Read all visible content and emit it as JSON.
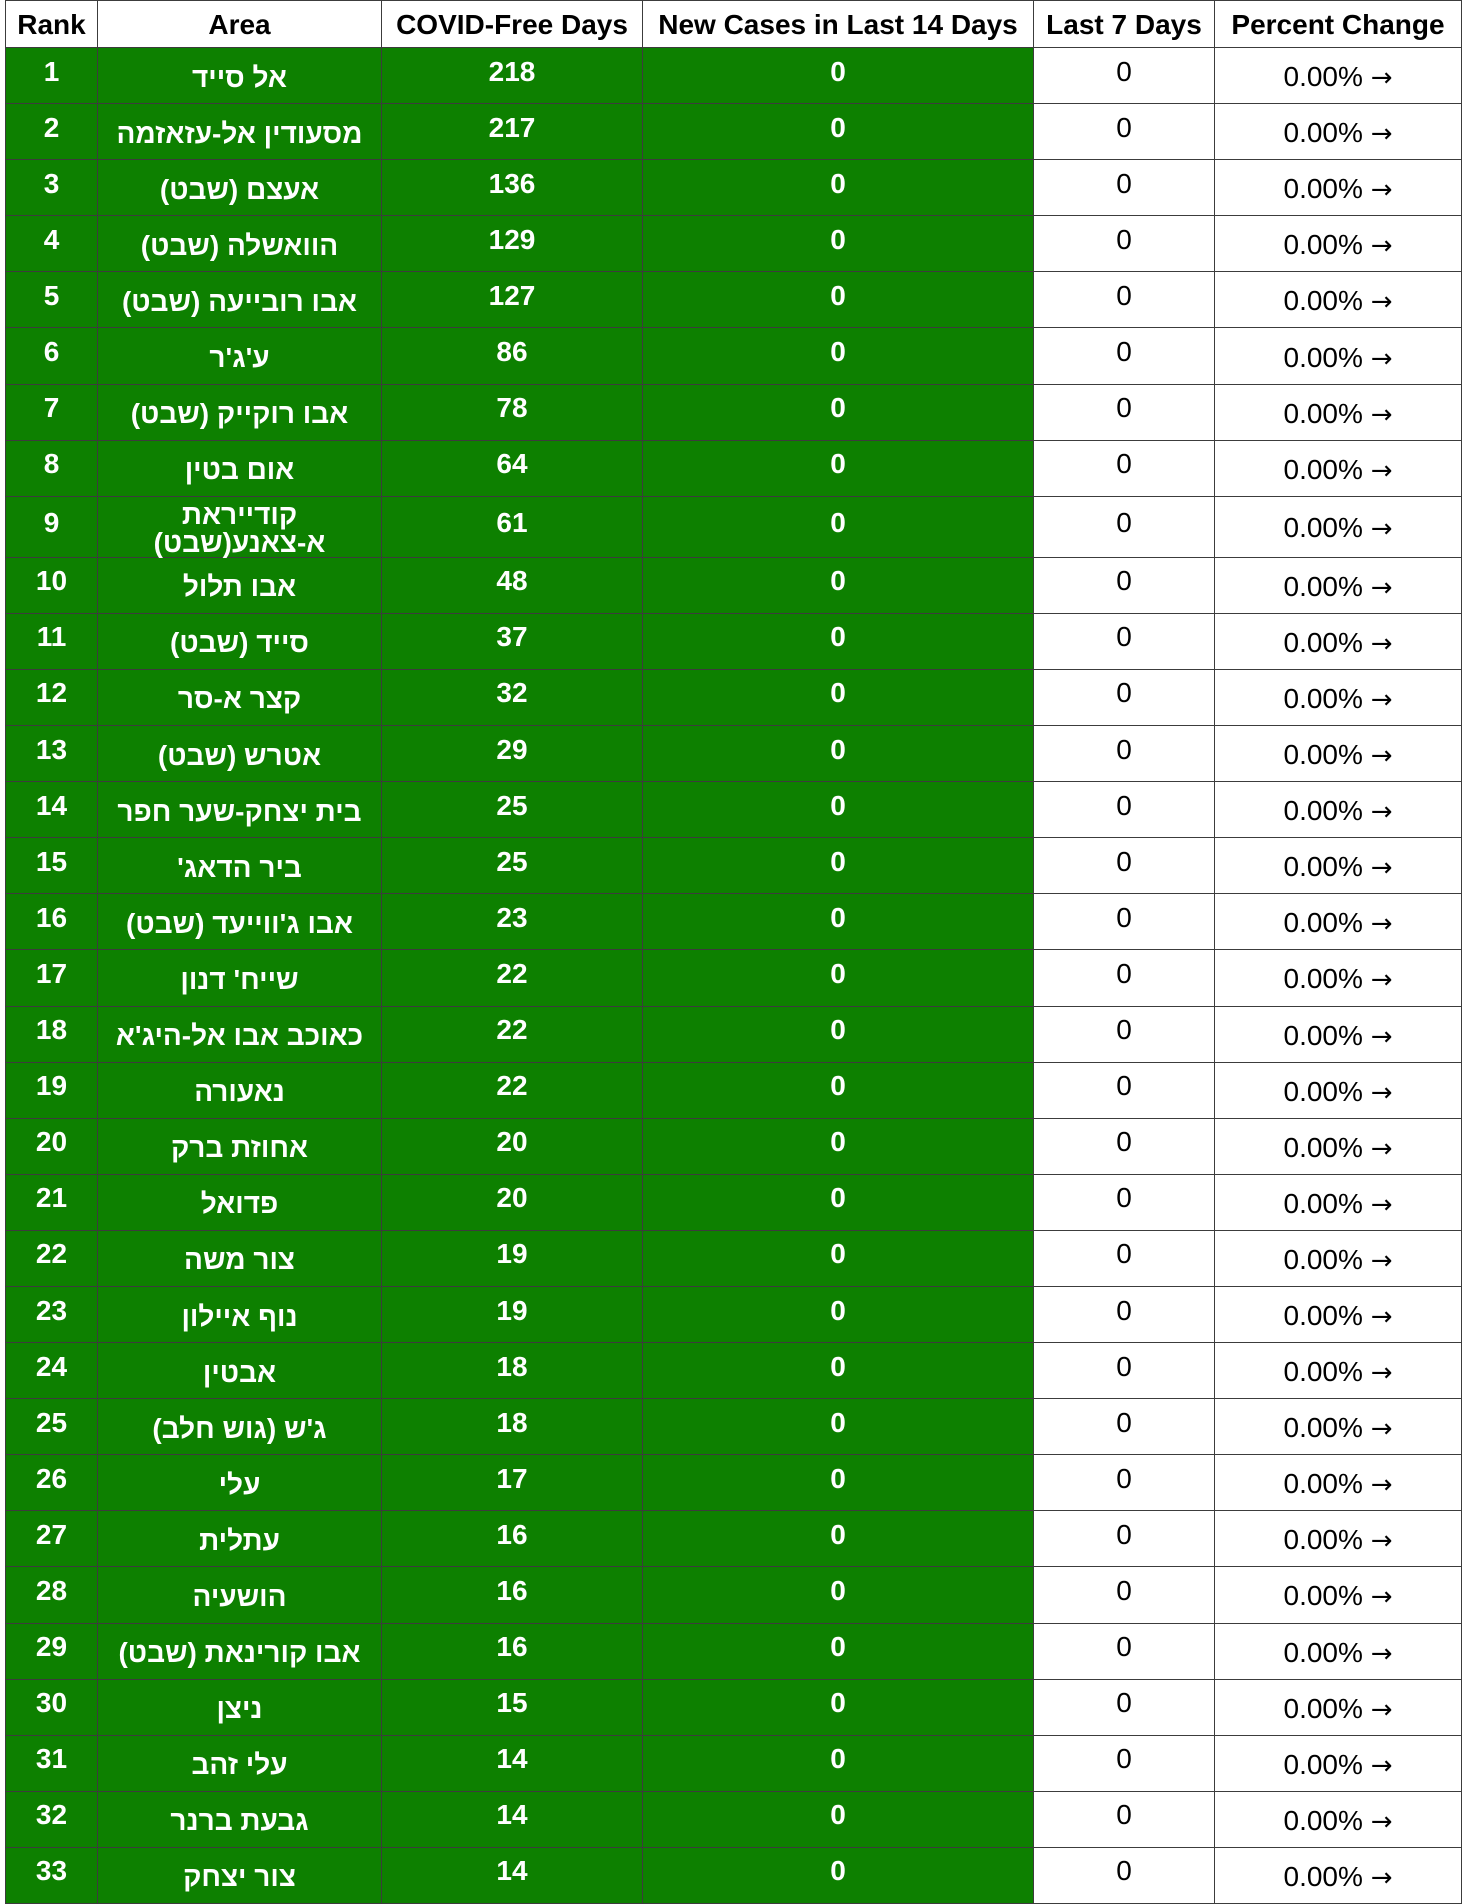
{
  "headers": [
    "Rank",
    "Area",
    "COVID-Free Days",
    "New Cases in Last 14 Days",
    "Last 7 Days",
    "Percent Change"
  ],
  "colors": {
    "highlight_green": "#0d8000",
    "text_on_green": "#ffffff",
    "border": "#3c3c3c"
  },
  "trend_icon": "right-arrow-icon",
  "rows": [
    {
      "rank": "1",
      "area": "אל סייד",
      "free_days": "218",
      "new_14": "0",
      "last_7": "0",
      "pct": "0.00%",
      "arrow": "→"
    },
    {
      "rank": "2",
      "area": "מסעודין אל-עזאזמה",
      "free_days": "217",
      "new_14": "0",
      "last_7": "0",
      "pct": "0.00%",
      "arrow": "→"
    },
    {
      "rank": "3",
      "area": "אעצם (שבט)",
      "free_days": "136",
      "new_14": "0",
      "last_7": "0",
      "pct": "0.00%",
      "arrow": "→"
    },
    {
      "rank": "4",
      "area": "הוואשלה (שבט)",
      "free_days": "129",
      "new_14": "0",
      "last_7": "0",
      "pct": "0.00%",
      "arrow": "→"
    },
    {
      "rank": "5",
      "area": "אבו רובייעה (שבט)",
      "free_days": "127",
      "new_14": "0",
      "last_7": "0",
      "pct": "0.00%",
      "arrow": "→"
    },
    {
      "rank": "6",
      "area": "ע'ג'ר",
      "free_days": "86",
      "new_14": "0",
      "last_7": "0",
      "pct": "0.00%",
      "arrow": "→"
    },
    {
      "rank": "7",
      "area": "אבו רוקייק (שבט)",
      "free_days": "78",
      "new_14": "0",
      "last_7": "0",
      "pct": "0.00%",
      "arrow": "→"
    },
    {
      "rank": "8",
      "area": "אום בטין",
      "free_days": "64",
      "new_14": "0",
      "last_7": "0",
      "pct": "0.00%",
      "arrow": "→"
    },
    {
      "rank": "9",
      "area": "קודייראת א-צאנע(שבט)",
      "free_days": "61",
      "new_14": "0",
      "last_7": "0",
      "pct": "0.00%",
      "arrow": "→"
    },
    {
      "rank": "10",
      "area": "אבו תלול",
      "free_days": "48",
      "new_14": "0",
      "last_7": "0",
      "pct": "0.00%",
      "arrow": "→"
    },
    {
      "rank": "11",
      "area": "סייד (שבט)",
      "free_days": "37",
      "new_14": "0",
      "last_7": "0",
      "pct": "0.00%",
      "arrow": "→"
    },
    {
      "rank": "12",
      "area": "קצר א-סר",
      "free_days": "32",
      "new_14": "0",
      "last_7": "0",
      "pct": "0.00%",
      "arrow": "→"
    },
    {
      "rank": "13",
      "area": "אטרש (שבט)",
      "free_days": "29",
      "new_14": "0",
      "last_7": "0",
      "pct": "0.00%",
      "arrow": "→"
    },
    {
      "rank": "14",
      "area": "בית יצחק-שער חפר",
      "free_days": "25",
      "new_14": "0",
      "last_7": "0",
      "pct": "0.00%",
      "arrow": "→"
    },
    {
      "rank": "15",
      "area": "ביר הדאג'",
      "free_days": "25",
      "new_14": "0",
      "last_7": "0",
      "pct": "0.00%",
      "arrow": "→"
    },
    {
      "rank": "16",
      "area": "אבו ג'ווייעד (שבט)",
      "free_days": "23",
      "new_14": "0",
      "last_7": "0",
      "pct": "0.00%",
      "arrow": "→"
    },
    {
      "rank": "17",
      "area": "שייח' דנון",
      "free_days": "22",
      "new_14": "0",
      "last_7": "0",
      "pct": "0.00%",
      "arrow": "→"
    },
    {
      "rank": "18",
      "area": "כאוכב אבו אל-היג'א",
      "free_days": "22",
      "new_14": "0",
      "last_7": "0",
      "pct": "0.00%",
      "arrow": "→"
    },
    {
      "rank": "19",
      "area": "נאעורה",
      "free_days": "22",
      "new_14": "0",
      "last_7": "0",
      "pct": "0.00%",
      "arrow": "→"
    },
    {
      "rank": "20",
      "area": "אחוזת ברק",
      "free_days": "20",
      "new_14": "0",
      "last_7": "0",
      "pct": "0.00%",
      "arrow": "→"
    },
    {
      "rank": "21",
      "area": "פדואל",
      "free_days": "20",
      "new_14": "0",
      "last_7": "0",
      "pct": "0.00%",
      "arrow": "→"
    },
    {
      "rank": "22",
      "area": "צור משה",
      "free_days": "19",
      "new_14": "0",
      "last_7": "0",
      "pct": "0.00%",
      "arrow": "→"
    },
    {
      "rank": "23",
      "area": "נוף איילון",
      "free_days": "19",
      "new_14": "0",
      "last_7": "0",
      "pct": "0.00%",
      "arrow": "→"
    },
    {
      "rank": "24",
      "area": "אבטין",
      "free_days": "18",
      "new_14": "0",
      "last_7": "0",
      "pct": "0.00%",
      "arrow": "→"
    },
    {
      "rank": "25",
      "area": "ג'ש (גוש חלב)",
      "free_days": "18",
      "new_14": "0",
      "last_7": "0",
      "pct": "0.00%",
      "arrow": "→"
    },
    {
      "rank": "26",
      "area": "עלי",
      "free_days": "17",
      "new_14": "0",
      "last_7": "0",
      "pct": "0.00%",
      "arrow": "→"
    },
    {
      "rank": "27",
      "area": "עתלית",
      "free_days": "16",
      "new_14": "0",
      "last_7": "0",
      "pct": "0.00%",
      "arrow": "→"
    },
    {
      "rank": "28",
      "area": "הושעיה",
      "free_days": "16",
      "new_14": "0",
      "last_7": "0",
      "pct": "0.00%",
      "arrow": "→"
    },
    {
      "rank": "29",
      "area": "אבו קורינאת (שבט)",
      "free_days": "16",
      "new_14": "0",
      "last_7": "0",
      "pct": "0.00%",
      "arrow": "→"
    },
    {
      "rank": "30",
      "area": "ניצן",
      "free_days": "15",
      "new_14": "0",
      "last_7": "0",
      "pct": "0.00%",
      "arrow": "→"
    },
    {
      "rank": "31",
      "area": "עלי זהב",
      "free_days": "14",
      "new_14": "0",
      "last_7": "0",
      "pct": "0.00%",
      "arrow": "→"
    },
    {
      "rank": "32",
      "area": "גבעת ברנר",
      "free_days": "14",
      "new_14": "0",
      "last_7": "0",
      "pct": "0.00%",
      "arrow": "→"
    },
    {
      "rank": "33",
      "area": "צור יצחק",
      "free_days": "14",
      "new_14": "0",
      "last_7": "0",
      "pct": "0.00%",
      "arrow": "→"
    }
  ]
}
